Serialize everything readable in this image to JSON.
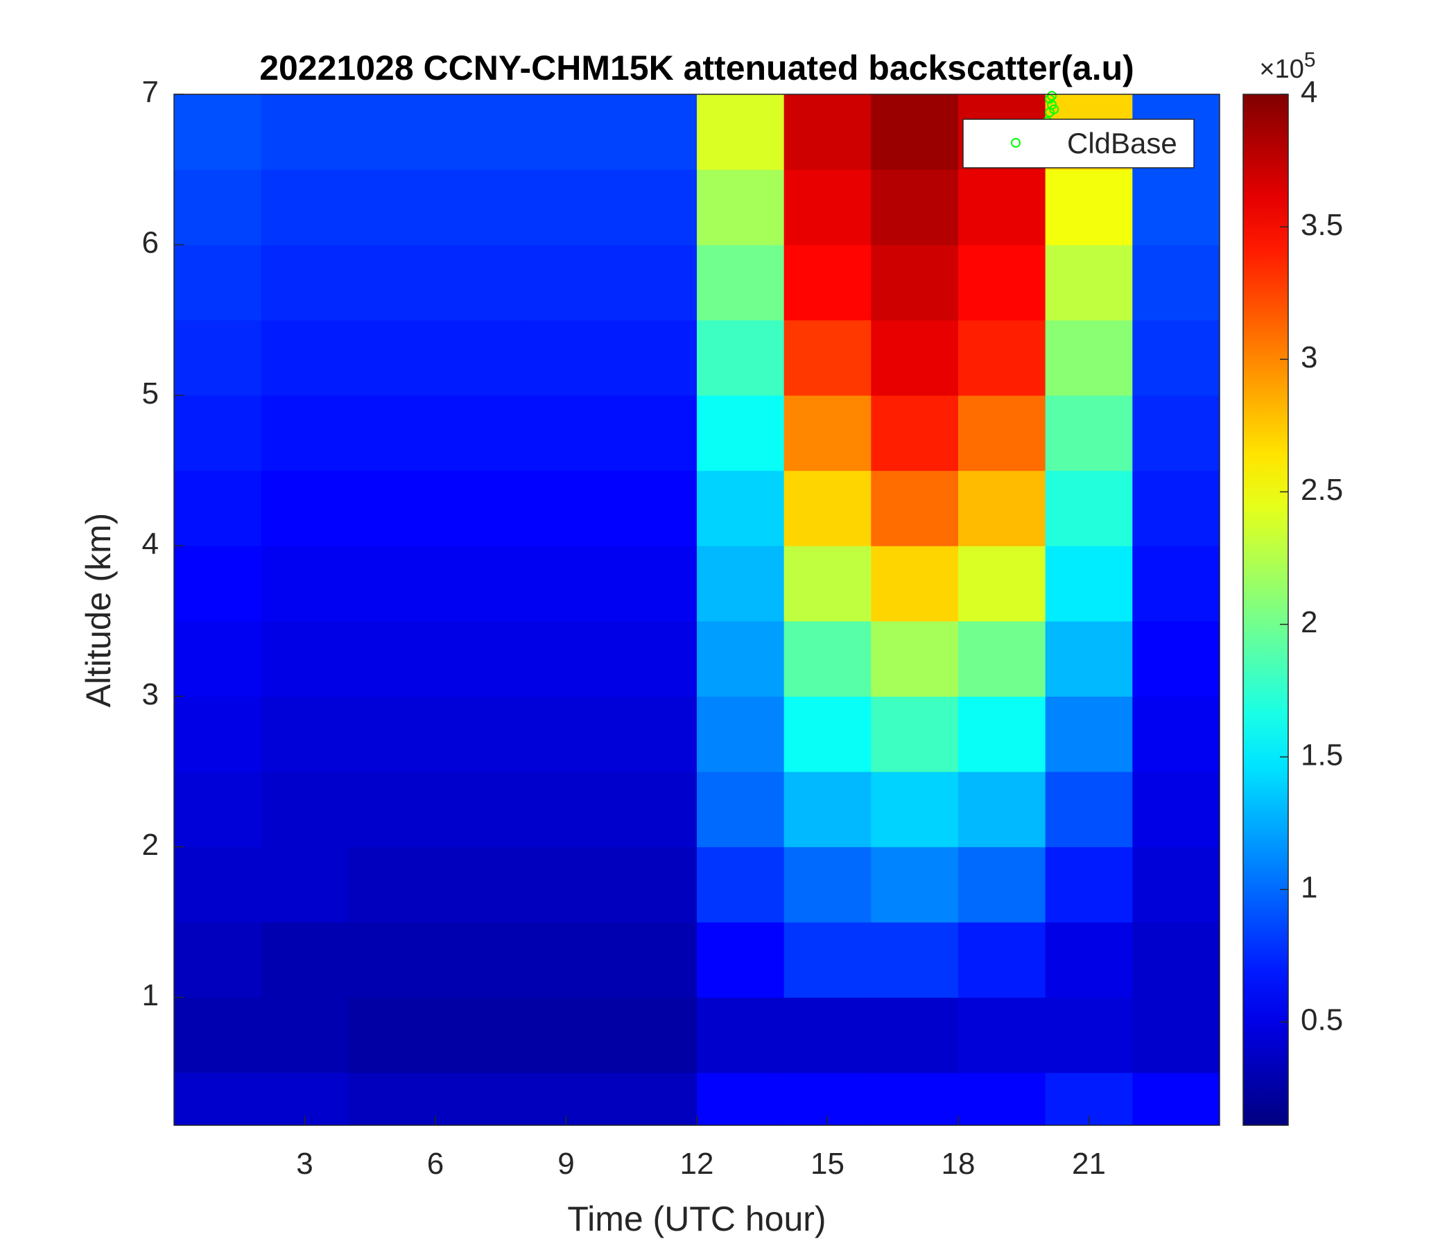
{
  "chart_data": {
    "type": "heatmap",
    "title": "20221028 CCNY-CHM15K attenuated backscatter(a.u)",
    "xlabel": "Time (UTC hour)",
    "ylabel": "Altitude (km)",
    "xlim": [
      0,
      24
    ],
    "ylim": [
      0.15,
      7
    ],
    "xticks": [
      3,
      6,
      9,
      12,
      15,
      18,
      21
    ],
    "yticks": [
      1,
      2,
      3,
      4,
      5,
      6,
      7
    ],
    "x_edges": [
      0,
      2,
      4,
      6,
      8,
      10,
      12,
      14,
      16,
      18,
      20,
      22,
      24
    ],
    "y_edges": [
      0.15,
      0.5,
      1,
      1.5,
      2,
      2.5,
      3,
      3.5,
      4,
      4.5,
      5,
      5.5,
      6,
      6.5,
      7
    ],
    "values": [
      [
        0.4,
        0.4,
        0.35,
        0.35,
        0.35,
        0.35,
        0.6,
        0.6,
        0.6,
        0.6,
        0.7,
        0.6
      ],
      [
        0.3,
        0.3,
        0.25,
        0.25,
        0.25,
        0.25,
        0.4,
        0.4,
        0.4,
        0.45,
        0.45,
        0.4
      ],
      [
        0.35,
        0.3,
        0.3,
        0.3,
        0.3,
        0.3,
        0.6,
        0.8,
        0.8,
        0.7,
        0.5,
        0.4
      ],
      [
        0.4,
        0.4,
        0.35,
        0.35,
        0.35,
        0.35,
        0.8,
        1.0,
        1.1,
        1.0,
        0.7,
        0.45
      ],
      [
        0.45,
        0.4,
        0.4,
        0.4,
        0.4,
        0.4,
        1.0,
        1.3,
        1.4,
        1.3,
        0.9,
        0.5
      ],
      [
        0.5,
        0.45,
        0.45,
        0.45,
        0.45,
        0.45,
        1.1,
        1.6,
        1.8,
        1.6,
        1.1,
        0.55
      ],
      [
        0.55,
        0.5,
        0.5,
        0.5,
        0.5,
        0.5,
        1.2,
        1.9,
        2.2,
        2.0,
        1.3,
        0.6
      ],
      [
        0.6,
        0.55,
        0.55,
        0.55,
        0.55,
        0.55,
        1.3,
        2.3,
        2.7,
        2.4,
        1.5,
        0.65
      ],
      [
        0.65,
        0.6,
        0.6,
        0.6,
        0.6,
        0.6,
        1.4,
        2.7,
        3.1,
        2.8,
        1.7,
        0.7
      ],
      [
        0.7,
        0.65,
        0.65,
        0.65,
        0.65,
        0.65,
        1.6,
        3.0,
        3.4,
        3.1,
        1.9,
        0.75
      ],
      [
        0.75,
        0.7,
        0.7,
        0.7,
        0.7,
        0.7,
        1.8,
        3.3,
        3.6,
        3.4,
        2.1,
        0.8
      ],
      [
        0.8,
        0.75,
        0.75,
        0.75,
        0.75,
        0.75,
        2.0,
        3.5,
        3.7,
        3.5,
        2.3,
        0.85
      ],
      [
        0.85,
        0.8,
        0.8,
        0.8,
        0.8,
        0.8,
        2.2,
        3.6,
        3.8,
        3.6,
        2.5,
        0.9
      ],
      [
        0.9,
        0.85,
        0.85,
        0.85,
        0.85,
        0.85,
        2.4,
        3.7,
        3.9,
        3.7,
        2.7,
        0.9
      ]
    ],
    "colormap": "jet",
    "clim": [
      0.11,
      4
    ],
    "colorbar_ticks": [
      0.5,
      1,
      1.5,
      2,
      2.5,
      3,
      3.5,
      4
    ],
    "colorbar_multiplier": {
      "base": "×10",
      "exponent": "5"
    },
    "series": [
      {
        "name": "CldBase",
        "type": "scatter",
        "color": "#00ff00",
        "x": [
          20.05,
          20.1,
          20.15,
          20.1,
          20.2,
          20.15
        ],
        "values": [
          6.82,
          6.88,
          6.93,
          6.97,
          6.9,
          6.99
        ]
      }
    ],
    "legend": "upper right"
  }
}
